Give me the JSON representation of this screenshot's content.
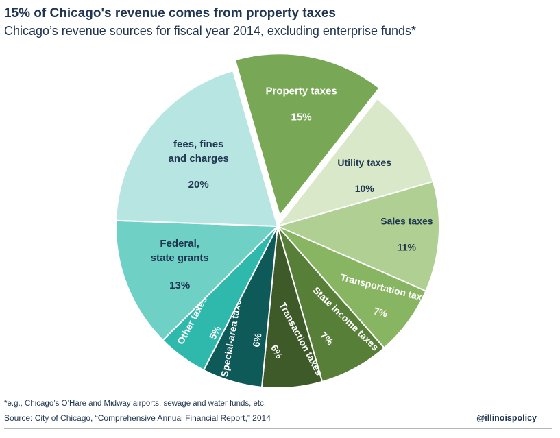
{
  "title": "15% of Chicago's revenue comes from property taxes",
  "subtitle": "Chicago’s revenue sources for fiscal year 2014, excluding enterprise funds*",
  "footnote": "*e.g., Chicago’s O’Hare and Midway airports, sewage and water funds, etc.",
  "source": "Source: City of Chicago, “Comprehensive Annual Financial Report,” 2014",
  "handle": "@illinoispolicy",
  "chart_data": {
    "type": "pie",
    "title": "15% of Chicago's revenue comes from property taxes",
    "subtitle": "Chicago’s revenue sources for fiscal year 2014, excluding enterprise funds*",
    "unit": "%",
    "exploded": "Property taxes",
    "slices": [
      {
        "label": "Property taxes",
        "value": 15,
        "color": "#78a855",
        "text_color": "#ffffff"
      },
      {
        "label": "Utility taxes",
        "value": 10,
        "color": "#d9e8c8",
        "text_color": "#1f3550"
      },
      {
        "label": "Sales taxes",
        "value": 11,
        "color": "#b0cf92",
        "text_color": "#1f3550"
      },
      {
        "label": "Transportation taxes",
        "value": 7,
        "color": "#88b561",
        "text_color": "#ffffff"
      },
      {
        "label": "State income taxes",
        "value": 7,
        "color": "#577f38",
        "text_color": "#ffffff"
      },
      {
        "label": "Transaction taxes",
        "value": 6,
        "color": "#3e5a29",
        "text_color": "#ffffff"
      },
      {
        "label": "Special-area taxes",
        "value": 6,
        "color": "#0e5a58",
        "text_color": "#ffffff"
      },
      {
        "label": "Other taxes",
        "value": 5,
        "color": "#2fb9ac",
        "text_color": "#ffffff"
      },
      {
        "label": "Federal, state grants",
        "value": 13,
        "color": "#6fd0c5",
        "text_color": "#1f3550"
      },
      {
        "label": "fees, fines and charges",
        "value": 20,
        "color": "#b7e5e2",
        "text_color": "#1f3550"
      }
    ]
  }
}
